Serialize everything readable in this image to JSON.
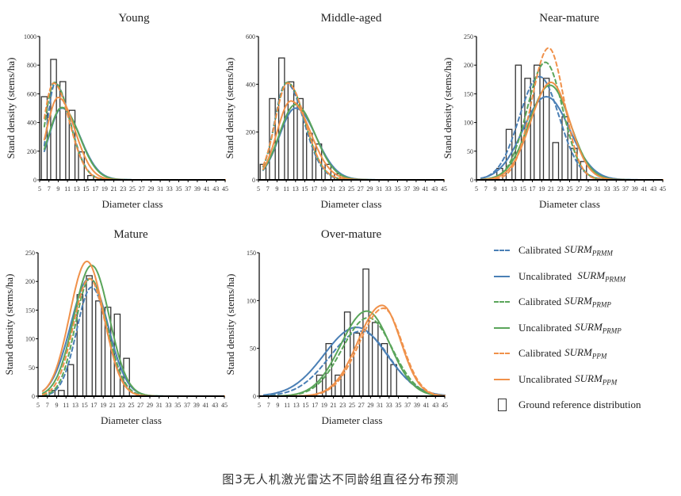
{
  "caption": "图3无人机激光雷达不同龄组直径分布预测",
  "colors": {
    "prmm": "#4a7fb5",
    "prmp": "#5aa55a",
    "ppm": "#f0914a",
    "bar_stroke": "#333333"
  },
  "legend": [
    {
      "label": "Calibrated",
      "model": "SURM",
      "sub": "PRMM",
      "style": "dashed",
      "color_key": "prmm"
    },
    {
      "label": "Uncalibrated ",
      "model": "SURM",
      "sub": "PRMM",
      "style": "solid",
      "color_key": "prmm"
    },
    {
      "label": "Calibrated",
      "model": "SURM",
      "sub": "PRMP",
      "style": "dashed",
      "color_key": "prmp"
    },
    {
      "label": "Uncalibrated",
      "model": "SURM",
      "sub": "PRMP",
      "style": "solid",
      "color_key": "prmp"
    },
    {
      "label": "Calibrated",
      "model": "SURM",
      "sub": "PPM",
      "style": "dashed",
      "color_key": "ppm"
    },
    {
      "label": "Uncalibrated",
      "model": "SURM",
      "sub": "PPM",
      "style": "solid",
      "color_key": "ppm"
    },
    {
      "label": "Ground reference distribution",
      "model": "",
      "sub": "",
      "style": "box",
      "color_key": "bar_stroke"
    }
  ],
  "chart_data": [
    {
      "type": "bar",
      "title": "Young",
      "xlabel": "Diameter class",
      "ylabel": "Stand density (stems/ha)",
      "xlim": [
        5,
        45
      ],
      "ylim": [
        0,
        1000
      ],
      "yticks": [
        0,
        200,
        400,
        600,
        800,
        1000
      ],
      "xticks": [
        5,
        7,
        9,
        11,
        13,
        15,
        17,
        19,
        21,
        23,
        25,
        27,
        29,
        31,
        33,
        35,
        37,
        39,
        41,
        43,
        45
      ],
      "bars": {
        "x": [
          6,
          8,
          10,
          12,
          14,
          16,
          18
        ],
        "values": [
          580,
          840,
          685,
          485,
          195,
          30,
          3
        ]
      },
      "series": [
        {
          "name": "Calibrated SURM_PRMM",
          "style": "dashed",
          "color_key": "prmm",
          "peak_x": 8.3,
          "peak_y": 670,
          "sd_left": 1.6,
          "sd_right": 3.3,
          "start": 6
        },
        {
          "name": "Uncalibrated SURM_PRMM",
          "style": "solid",
          "color_key": "prmm",
          "peak_x": 9.8,
          "peak_y": 500,
          "sd_left": 2.8,
          "sd_right": 3.9,
          "start": 6
        },
        {
          "name": "Calibrated SURM_PRMP",
          "style": "dashed",
          "color_key": "prmp",
          "peak_x": 8.2,
          "peak_y": 680,
          "sd_left": 2.0,
          "sd_right": 3.3,
          "start": 6
        },
        {
          "name": "Uncalibrated SURM_PRMP",
          "style": "solid",
          "color_key": "prmp",
          "peak_x": 9.8,
          "peak_y": 505,
          "sd_left": 2.9,
          "sd_right": 3.8,
          "start": 6
        },
        {
          "name": "Calibrated SURM_PPM",
          "style": "dashed",
          "color_key": "ppm",
          "peak_x": 8.0,
          "peak_y": 675,
          "sd_left": 2.1,
          "sd_right": 3.4,
          "start": 6
        },
        {
          "name": "Uncalibrated SURM_PPM",
          "style": "solid",
          "color_key": "ppm",
          "peak_x": 9.0,
          "peak_y": 575,
          "sd_left": 2.5,
          "sd_right": 3.6,
          "start": 6
        }
      ]
    },
    {
      "type": "bar",
      "title": "Middle-aged",
      "xlabel": "Diameter class",
      "ylabel": "Stand density (stems/ha)",
      "xlim": [
        5,
        45
      ],
      "ylim": [
        0,
        600
      ],
      "yticks": [
        0,
        200,
        400,
        600
      ],
      "xticks": [
        5,
        7,
        9,
        11,
        13,
        15,
        17,
        19,
        21,
        23,
        25,
        27,
        29,
        31,
        33,
        35,
        37,
        39,
        41,
        43,
        45
      ],
      "bars": {
        "x": [
          6,
          8,
          10,
          12,
          14,
          16,
          18,
          20,
          22
        ],
        "values": [
          65,
          340,
          510,
          410,
          340,
          195,
          150,
          65,
          25
        ]
      },
      "series": [
        {
          "name": "Calibrated SURM_PRMM",
          "style": "dashed",
          "color_key": "prmm",
          "peak_x": 11.0,
          "peak_y": 405,
          "sd_left": 2.5,
          "sd_right": 3.8,
          "start": 6
        },
        {
          "name": "Uncalibrated SURM_PRMM",
          "style": "solid",
          "color_key": "prmm",
          "peak_x": 13.0,
          "peak_y": 300,
          "sd_left": 3.5,
          "sd_right": 4.4,
          "start": 6
        },
        {
          "name": "Calibrated SURM_PRMP",
          "style": "dashed",
          "color_key": "prmp",
          "peak_x": 11.2,
          "peak_y": 408,
          "sd_left": 2.6,
          "sd_right": 3.8,
          "start": 6
        },
        {
          "name": "Uncalibrated SURM_PRMP",
          "style": "solid",
          "color_key": "prmp",
          "peak_x": 13.0,
          "peak_y": 315,
          "sd_left": 3.5,
          "sd_right": 4.2,
          "start": 6
        },
        {
          "name": "Calibrated SURM_PPM",
          "style": "dashed",
          "color_key": "ppm",
          "peak_x": 11.3,
          "peak_y": 405,
          "sd_left": 2.7,
          "sd_right": 3.8,
          "start": 6
        },
        {
          "name": "Uncalibrated SURM_PPM",
          "style": "solid",
          "color_key": "ppm",
          "peak_x": 12.0,
          "peak_y": 330,
          "sd_left": 3.0,
          "sd_right": 4.2,
          "start": 6
        }
      ]
    },
    {
      "type": "bar",
      "title": "Near-mature",
      "xlabel": "Diameter class",
      "ylabel": "Stand density (stems/ha)",
      "xlim": [
        5,
        45
      ],
      "ylim": [
        0,
        250
      ],
      "yticks": [
        0,
        50,
        100,
        150,
        200,
        250
      ],
      "xticks": [
        5,
        7,
        9,
        11,
        13,
        15,
        17,
        19,
        21,
        23,
        25,
        27,
        29,
        31,
        33,
        35,
        37,
        39,
        41,
        43,
        45
      ],
      "bars": {
        "x": [
          10,
          12,
          14,
          16,
          18,
          20,
          22,
          24,
          26,
          28
        ],
        "values": [
          20,
          88,
          200,
          177,
          200,
          177,
          65,
          110,
          55,
          32
        ]
      },
      "series": [
        {
          "name": "Calibrated SURM_PRMM",
          "style": "dashed",
          "color_key": "prmm",
          "peak_x": 18.5,
          "peak_y": 180,
          "sd_left": 4.3,
          "sd_right": 4.3,
          "start": 6
        },
        {
          "name": "Uncalibrated SURM_PRMM",
          "style": "solid",
          "color_key": "prmm",
          "peak_x": 20.0,
          "peak_y": 145,
          "sd_left": 5.0,
          "sd_right": 5.0,
          "start": 6
        },
        {
          "name": "Calibrated SURM_PRMP",
          "style": "dashed",
          "color_key": "prmp",
          "peak_x": 19.8,
          "peak_y": 205,
          "sd_left": 3.9,
          "sd_right": 3.7,
          "start": 6
        },
        {
          "name": "Uncalibrated SURM_PRMP",
          "style": "solid",
          "color_key": "prmp",
          "peak_x": 20.8,
          "peak_y": 165,
          "sd_left": 4.5,
          "sd_right": 4.3,
          "start": 6
        },
        {
          "name": "Calibrated SURM_PPM",
          "style": "dashed",
          "color_key": "ppm",
          "peak_x": 20.5,
          "peak_y": 230,
          "sd_left": 3.6,
          "sd_right": 3.3,
          "start": 6
        },
        {
          "name": "Uncalibrated SURM_PPM",
          "style": "solid",
          "color_key": "ppm",
          "peak_x": 21.0,
          "peak_y": 170,
          "sd_left": 4.3,
          "sd_right": 4.0,
          "start": 6
        }
      ]
    },
    {
      "type": "bar",
      "title": "Mature",
      "xlabel": "Diameter class",
      "ylabel": "Stand density (stems/ha)",
      "xlim": [
        5,
        45
      ],
      "ylim": [
        0,
        250
      ],
      "yticks": [
        0,
        50,
        100,
        150,
        200,
        250
      ],
      "xticks": [
        5,
        7,
        9,
        11,
        13,
        15,
        17,
        19,
        21,
        23,
        25,
        27,
        29,
        31,
        33,
        35,
        37,
        39,
        41,
        43,
        45
      ],
      "bars": {
        "x": [
          8,
          10,
          12,
          14,
          16,
          18,
          20,
          22,
          24
        ],
        "values": [
          10,
          10,
          55,
          177,
          210,
          166,
          155,
          143,
          66
        ]
      },
      "series": [
        {
          "name": "Calibrated SURM_PRMM",
          "style": "dashed",
          "color_key": "prmm",
          "peak_x": 16.5,
          "peak_y": 190,
          "sd_left": 3.2,
          "sd_right": 3.4,
          "start": 6
        },
        {
          "name": "Uncalibrated SURM_PRMM",
          "style": "solid",
          "color_key": "prmm",
          "peak_x": 16.0,
          "peak_y": 205,
          "sd_left": 4.0,
          "sd_right": 4.0,
          "start": 6
        },
        {
          "name": "Calibrated SURM_PRMP",
          "style": "dashed",
          "color_key": "prmp",
          "peak_x": 16.2,
          "peak_y": 205,
          "sd_left": 3.2,
          "sd_right": 3.6,
          "start": 6
        },
        {
          "name": "Uncalibrated SURM_PRMP",
          "style": "solid",
          "color_key": "prmp",
          "peak_x": 16.5,
          "peak_y": 228,
          "sd_left": 3.8,
          "sd_right": 3.8,
          "start": 6
        },
        {
          "name": "Calibrated SURM_PPM",
          "style": "dashed",
          "color_key": "ppm",
          "peak_x": 16.0,
          "peak_y": 205,
          "sd_left": 3.4,
          "sd_right": 3.5,
          "start": 6
        },
        {
          "name": "Uncalibrated SURM_PPM",
          "style": "solid",
          "color_key": "ppm",
          "peak_x": 15.5,
          "peak_y": 235,
          "sd_left": 3.7,
          "sd_right": 3.6,
          "start": 6
        }
      ]
    },
    {
      "type": "bar",
      "title": "Over-mature",
      "xlabel": "Diameter class",
      "ylabel": "Stand density (stems/ha)",
      "xlim": [
        5,
        45
      ],
      "ylim": [
        0,
        150
      ],
      "yticks": [
        0,
        50,
        100,
        150
      ],
      "xticks": [
        5,
        7,
        9,
        11,
        13,
        15,
        17,
        19,
        21,
        23,
        25,
        27,
        29,
        31,
        33,
        35,
        37,
        39,
        41,
        43,
        45
      ],
      "bars": {
        "x": [
          18,
          20,
          22,
          24,
          26,
          28,
          30,
          32,
          34
        ],
        "values": [
          22,
          55,
          22,
          88,
          66,
          133,
          77,
          55,
          33
        ]
      },
      "series": [
        {
          "name": "Calibrated SURM_PRMM",
          "style": "dashed",
          "color_key": "prmm",
          "peak_x": 27.0,
          "peak_y": 68,
          "sd_left": 6.8,
          "sd_right": 6.0,
          "start": 6
        },
        {
          "name": "Uncalibrated SURM_PRMM",
          "style": "solid",
          "color_key": "prmm",
          "peak_x": 26.0,
          "peak_y": 72,
          "sd_left": 7.0,
          "sd_right": 6.5,
          "start": 6
        },
        {
          "name": "Calibrated SURM_PRMP",
          "style": "dashed",
          "color_key": "prmp",
          "peak_x": 28.5,
          "peak_y": 82,
          "sd_left": 5.6,
          "sd_right": 5.2,
          "start": 6
        },
        {
          "name": "Uncalibrated SURM_PRMP",
          "style": "solid",
          "color_key": "prmp",
          "peak_x": 28.2,
          "peak_y": 89,
          "sd_left": 5.6,
          "sd_right": 5.0,
          "start": 6
        },
        {
          "name": "Calibrated SURM_PPM",
          "style": "dashed",
          "color_key": "ppm",
          "peak_x": 31.8,
          "peak_y": 92,
          "sd_left": 5.2,
          "sd_right": 4.0,
          "start": 6
        },
        {
          "name": "Uncalibrated SURM_PPM",
          "style": "solid",
          "color_key": "ppm",
          "peak_x": 31.5,
          "peak_y": 95,
          "sd_left": 5.2,
          "sd_right": 4.0,
          "start": 6
        }
      ]
    }
  ]
}
